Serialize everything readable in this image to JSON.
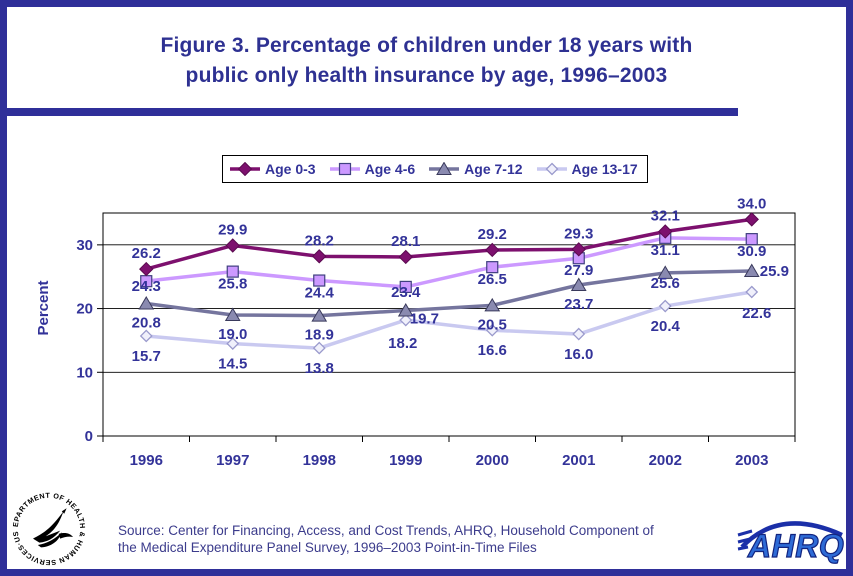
{
  "page": {
    "title_line1": "Figure 3. Percentage of children under 18 years with",
    "title_line2": "public only health insurance by age, 1996–2003",
    "source_line1": "Source: Center for Financing, Access, and Cost Trends, AHRQ, Household Component of",
    "source_line2": "the Medical Expenditure Panel Survey, 1996–2003 Point-in-Time Files",
    "colors": {
      "border": "#2f2f99",
      "title_text": "#2e3192",
      "chart_text": "#333399",
      "source_text": "#3c3c8c"
    }
  },
  "logos": {
    "hhs_seal_text": "DEPARTMENT OF HEALTH & HUMAN SERVICES·USA",
    "ahrq_text": "AHRQ"
  },
  "chart_data": {
    "type": "line",
    "title": "",
    "xlabel": "",
    "ylabel": "Percent",
    "ylim": [
      0,
      35
    ],
    "yticks": [
      0,
      10,
      20,
      30
    ],
    "grid": true,
    "legend_position": "top",
    "categories": [
      "1996",
      "1997",
      "1998",
      "1999",
      "2000",
      "2001",
      "2002",
      "2003"
    ],
    "series": [
      {
        "name": "Age 0-3",
        "values": [
          26.2,
          29.9,
          28.2,
          28.1,
          29.2,
          29.3,
          32.1,
          34.0
        ],
        "color": "#7d106e",
        "marker": "diamond-filled",
        "marker_fill": "#7d106e",
        "marker_stroke": "#5a0a4f"
      },
      {
        "name": "Age 4-6",
        "values": [
          24.3,
          25.8,
          24.4,
          23.4,
          26.5,
          27.9,
          31.1,
          30.9
        ],
        "color": "#cc99ff",
        "marker": "square",
        "marker_fill": "#cc99ff",
        "marker_stroke": "#404080"
      },
      {
        "name": "Age 7-12",
        "values": [
          20.8,
          19.0,
          18.9,
          19.7,
          20.5,
          23.7,
          25.6,
          25.9
        ],
        "color": "#75759e",
        "marker": "triangle",
        "marker_fill": "#8a8ab0",
        "marker_stroke": "#3a3a5c"
      },
      {
        "name": "Age 13-17",
        "values": [
          15.7,
          14.5,
          13.8,
          18.2,
          16.6,
          16.0,
          20.4,
          22.6
        ],
        "color": "#c9c9f0",
        "marker": "diamond-open",
        "marker_fill": "#f0f0fb",
        "marker_stroke": "#9a9acc"
      }
    ]
  }
}
